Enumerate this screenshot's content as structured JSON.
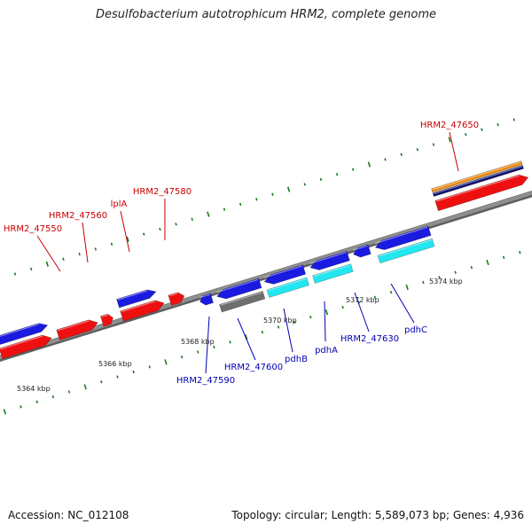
{
  "title": "Desulfobacterium autotrophicum HRM2, complete genome",
  "accession_text": "Accession: NC_012108",
  "topology_text": "Topology: circular; Length: 5,589,073 bp; Genes: 4,936",
  "colors": {
    "backbone": "#8f8f8f",
    "tick": "#1b7a1b",
    "top_strand_label": "#c80000",
    "bottom_strand_label": "#0000b4",
    "gene_blue": "#1a1ae0",
    "gene_red": "#ee1010",
    "gene_cyan": "#22e6f0",
    "gene_orange": "#f08a10",
    "gene_navy": "#101070",
    "gene_gray": "#6e6e6e"
  },
  "scale_labels": [
    "5364 kbp",
    "5366 kbp",
    "5368 kbp",
    "5370 kbp",
    "5372 kbp",
    "5374 kbp"
  ],
  "gene_labels_top": [
    "HRM2_47550",
    "HRM2_47560",
    "lplA",
    "HRM2_47580",
    "HRM2_47650"
  ],
  "gene_labels_bottom": [
    "HRM2_47590",
    "HRM2_47600",
    "pdhB",
    "pdhA",
    "HRM2_47630",
    "pdhC"
  ]
}
